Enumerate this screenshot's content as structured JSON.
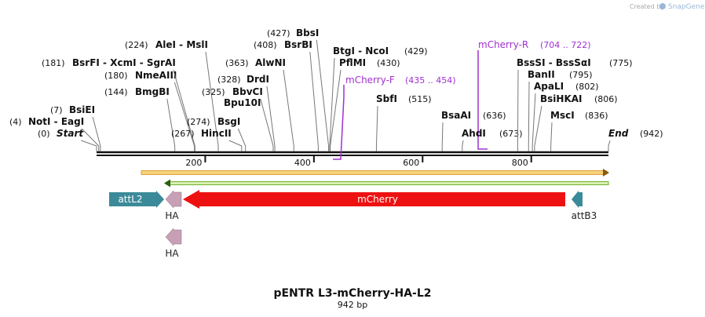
{
  "credit": {
    "prefix": "Created by",
    "brand": "SnapGene"
  },
  "map": {
    "title": "pENTR L3-mCherry-HA-L2",
    "length_label": "942 bp",
    "ruler_ticks": [
      200,
      400,
      600,
      800
    ]
  },
  "sites": [
    {
      "name": "Start",
      "position": {
        "value": 0,
        "label": "(0)"
      }
    },
    {
      "name": "NotI  - EagI",
      "position": {
        "value": 4,
        "label": "(4)"
      }
    },
    {
      "name": "BsiEI",
      "position": {
        "value": 7,
        "label": "(7)"
      }
    },
    {
      "name": "BmgBI",
      "position": {
        "value": 144,
        "label": "(144)"
      }
    },
    {
      "name": "NmeAIII",
      "position": {
        "value": 180,
        "label": "(180)"
      }
    },
    {
      "name": "BsrFI  - XcmI  - SgrAI",
      "position": {
        "value": 181,
        "label": "(181)"
      }
    },
    {
      "name": "AleI  - MslI",
      "position": {
        "value": 224,
        "label": "(224)"
      }
    },
    {
      "name": "HincII",
      "position": {
        "value": 267,
        "label": "(267)"
      }
    },
    {
      "name": "BsgI",
      "position": {
        "value": 274,
        "label": "(274)"
      }
    },
    {
      "name": "BbvCI",
      "position": {
        "value": 325,
        "label": "(325)"
      }
    },
    {
      "name": "Bpu10I"
    },
    {
      "name": "DrdI",
      "position": {
        "value": 328,
        "label": "(328)"
      }
    },
    {
      "name": "AlwNI",
      "position": {
        "value": 363,
        "label": "(363)"
      }
    },
    {
      "name": "BsrBI",
      "position": {
        "value": 408,
        "label": "(408)"
      }
    },
    {
      "name": "BbsI",
      "position": {
        "value": 427,
        "label": "(427)"
      }
    },
    {
      "name": "BtgI  - NcoI",
      "position": {
        "value": 429,
        "label": "(429)"
      }
    },
    {
      "name": "PflMI",
      "position": {
        "value": 430,
        "label": "(430)"
      }
    },
    {
      "name": "SbfI",
      "position": {
        "value": 515,
        "label": "(515)"
      }
    },
    {
      "name": "BsaAI",
      "position": {
        "value": 636,
        "label": "(636)"
      }
    },
    {
      "name": "AhdI",
      "position": {
        "value": 673,
        "label": "(673)"
      }
    },
    {
      "name": "BssSI  - BssSαI",
      "position": {
        "value": 775,
        "label": "(775)"
      }
    },
    {
      "name": "BanII",
      "position": {
        "value": 795,
        "label": "(795)"
      }
    },
    {
      "name": "ApaLI",
      "position": {
        "value": 802,
        "label": "(802)"
      }
    },
    {
      "name": "BsiHKAI",
      "position": {
        "value": 806,
        "label": "(806)"
      }
    },
    {
      "name": "MscI",
      "position": {
        "value": 836,
        "label": "(836)"
      }
    },
    {
      "name": "End",
      "position": {
        "value": 942,
        "label": "(942)"
      }
    }
  ],
  "primers": [
    {
      "name": "mCherry-F",
      "range": "(435 .. 454)"
    },
    {
      "name": "mCherry-R",
      "range": "(704 .. 722)"
    }
  ],
  "features": [
    {
      "name": "attL2"
    },
    {
      "name": "HA"
    },
    {
      "name": "mCherry"
    },
    {
      "name": "attB3"
    },
    {
      "name": "HA"
    }
  ]
}
